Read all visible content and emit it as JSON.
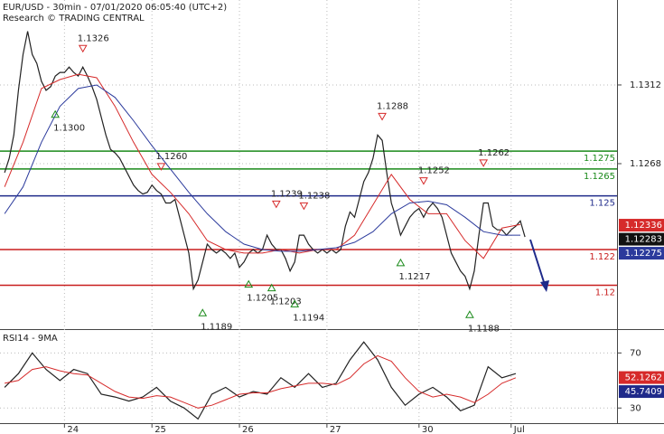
{
  "chart_data": [
    {
      "type": "line",
      "title": "EUR/USD - 30min - 07/01/2020 06:05:40 (UTC+2)",
      "subtitle": "Research © TRADING CENTRAL",
      "xlim": [
        -1,
        133
      ],
      "ylim": [
        1.11765,
        1.13595
      ],
      "yticks": [
        1.1312,
        1.1268
      ],
      "grid": true,
      "series": [
        {
          "color": "#222222",
          "values": [
            1.1263,
            1.1271,
            1.1284,
            1.1309,
            1.1329,
            1.1342,
            1.1329,
            1.1324,
            1.1314,
            1.1309,
            1.1311,
            1.1317,
            1.1319,
            1.1319,
            1.1322,
            1.1319,
            1.1317,
            1.1322,
            1.1317,
            1.1311,
            1.1304,
            1.1294,
            1.1284,
            1.1276,
            1.1274,
            1.1271,
            1.1266,
            1.1261,
            1.1256,
            1.1253,
            1.1251,
            1.1252,
            1.1256,
            1.1253,
            1.1251,
            1.1246,
            1.1246,
            1.1248,
            1.1238,
            1.1228,
            1.1218,
            1.1198,
            1.1203,
            1.1213,
            1.1223,
            1.122,
            1.1218,
            1.122,
            1.1218,
            1.1215,
            1.1218,
            1.121,
            1.1213,
            1.1218,
            1.122,
            1.1218,
            1.122,
            1.1228,
            1.1223,
            1.122,
            1.122,
            1.1215,
            1.1208,
            1.1213,
            1.1228,
            1.1228,
            1.1223,
            1.122,
            1.1218,
            1.122,
            1.1218,
            1.122,
            1.1218,
            1.122,
            1.1233,
            1.1241,
            1.1238,
            1.1248,
            1.1258,
            1.1263,
            1.1271,
            1.1284,
            1.1281,
            1.1263,
            1.1246,
            1.1238,
            1.1228,
            1.1233,
            1.1238,
            1.1241,
            1.1243,
            1.1238,
            1.1243,
            1.1246,
            1.1243,
            1.1238,
            1.1228,
            1.1218,
            1.1213,
            1.1208,
            1.1205,
            1.1198,
            1.1208,
            1.1228,
            1.1246,
            1.1246,
            1.1233,
            1.1231,
            1.1231,
            1.1228,
            1.1231,
            1.1233,
            1.1236,
            1.1227
          ]
        },
        {
          "color": "#d62a2a",
          "x": [
            0,
            4,
            8,
            12,
            16,
            20,
            24,
            28,
            32,
            36,
            40,
            44,
            48,
            52,
            56,
            60,
            64,
            68,
            72,
            76,
            80,
            84,
            88,
            92,
            96,
            100,
            104,
            108,
            112
          ],
          "values": [
            1.1255,
            1.128,
            1.131,
            1.1315,
            1.1318,
            1.1316,
            1.13,
            1.128,
            1.1262,
            1.1252,
            1.124,
            1.1225,
            1.122,
            1.1218,
            1.1218,
            1.122,
            1.1218,
            1.122,
            1.122,
            1.1228,
            1.1245,
            1.1262,
            1.1248,
            1.124,
            1.124,
            1.1225,
            1.1215,
            1.1232,
            1.1234
          ]
        },
        {
          "color": "#2b3a9c",
          "x": [
            0,
            4,
            8,
            12,
            16,
            20,
            24,
            28,
            32,
            36,
            40,
            44,
            48,
            52,
            56,
            60,
            64,
            68,
            72,
            76,
            80,
            84,
            88,
            92,
            96,
            100,
            104,
            108,
            112
          ],
          "values": [
            1.124,
            1.1255,
            1.128,
            1.13,
            1.131,
            1.1312,
            1.1305,
            1.1292,
            1.1278,
            1.1265,
            1.1252,
            1.124,
            1.123,
            1.1223,
            1.122,
            1.1219,
            1.1219,
            1.122,
            1.1221,
            1.1224,
            1.123,
            1.124,
            1.1246,
            1.1247,
            1.1245,
            1.1238,
            1.123,
            1.1228,
            1.1228
          ]
        }
      ],
      "levels": [
        {
          "value": 1.1275,
          "color": "#1a8a1a"
        },
        {
          "value": 1.1265,
          "color": "#1a8a1a"
        },
        {
          "value": 1.125,
          "color": "#1f2a8a"
        },
        {
          "value": 1.122,
          "color": "#c81e1e"
        },
        {
          "value": 1.12,
          "color": "#c81e1e"
        }
      ],
      "annotations": [
        {
          "x": 17,
          "value": 1.1326,
          "label": "1.1326",
          "marker": "down"
        },
        {
          "x": 11,
          "value": 1.13,
          "label": "1.1300",
          "marker": "up"
        },
        {
          "x": 34,
          "value": 1.126,
          "label": "1.1260",
          "marker": "down"
        },
        {
          "x": 82,
          "value": 1.1288,
          "label": "1.1288",
          "marker": "down"
        },
        {
          "x": 91,
          "value": 1.1252,
          "label": "1.1252",
          "marker": "down"
        },
        {
          "x": 104,
          "value": 1.1262,
          "label": "1.1262",
          "marker": "down"
        },
        {
          "x": 59,
          "value": 1.1239,
          "label": "1.1239",
          "marker": "down"
        },
        {
          "x": 65,
          "value": 1.1238,
          "label": "1.1238",
          "marker": "down"
        },
        {
          "x": 86,
          "value": 1.1217,
          "label": "1.1217",
          "marker": "up"
        },
        {
          "x": 53,
          "value": 1.1205,
          "label": "1.1205",
          "marker": "up"
        },
        {
          "x": 58,
          "value": 1.1203,
          "label": "1.1203",
          "marker": "up"
        },
        {
          "x": 63,
          "value": 1.1194,
          "label": "1.1194",
          "marker": "up"
        },
        {
          "x": 43,
          "value": 1.1189,
          "label": "1.1189",
          "marker": "up"
        },
        {
          "x": 101,
          "value": 1.1188,
          "label": "1.1188",
          "marker": "up"
        }
      ],
      "price_labels": [
        {
          "value": 1.12336,
          "color": "#d62a2a"
        },
        {
          "value": 1.12283,
          "color": "#111111"
        },
        {
          "value": 1.12275,
          "color": "#2b3a9c"
        }
      ]
    },
    {
      "type": "line",
      "title": "RSI14 - 9MA",
      "xlim": [
        -1,
        133
      ],
      "xticks": [
        {
          "value": 13,
          "label": "24"
        },
        {
          "value": 32,
          "label": "25"
        },
        {
          "value": 51,
          "label": "26"
        },
        {
          "value": 70,
          "label": "27"
        },
        {
          "value": 90,
          "label": "30"
        },
        {
          "value": 110,
          "label": "Jul"
        }
      ],
      "ylim": [
        19,
        86
      ],
      "yticks": [
        70,
        30
      ],
      "grid": true,
      "series": [
        {
          "color": "#222222",
          "x": [
            0,
            3,
            6,
            9,
            12,
            15,
            18,
            21,
            24,
            27,
            30,
            33,
            36,
            39,
            42,
            45,
            48,
            51,
            54,
            57,
            60,
            63,
            66,
            69,
            72,
            75,
            78,
            81,
            84,
            87,
            90,
            93,
            96,
            99,
            102,
            105,
            108,
            111
          ],
          "values": [
            45,
            55,
            70,
            58,
            50,
            58,
            55,
            40,
            38,
            35,
            38,
            45,
            35,
            30,
            22,
            40,
            45,
            38,
            42,
            40,
            52,
            45,
            55,
            45,
            48,
            65,
            78,
            65,
            45,
            32,
            40,
            45,
            38,
            28,
            32,
            60,
            52,
            55
          ]
        },
        {
          "color": "#d62a2a",
          "x": [
            0,
            3,
            6,
            9,
            12,
            15,
            18,
            21,
            24,
            27,
            30,
            33,
            36,
            39,
            42,
            45,
            48,
            51,
            54,
            57,
            60,
            63,
            66,
            69,
            72,
            75,
            78,
            81,
            84,
            87,
            90,
            93,
            96,
            99,
            102,
            105,
            108,
            111
          ],
          "values": [
            48,
            50,
            58,
            60,
            57,
            55,
            54,
            48,
            42,
            38,
            37,
            39,
            38,
            34,
            30,
            32,
            36,
            40,
            41,
            41,
            44,
            46,
            48,
            48,
            47,
            52,
            62,
            68,
            64,
            52,
            42,
            38,
            40,
            38,
            34,
            40,
            48,
            52
          ]
        }
      ],
      "price_labels": [
        {
          "value": 52.1262,
          "color": "#d62a2a"
        },
        {
          "value": 45.7409,
          "color": "#1f2a8a"
        }
      ]
    }
  ]
}
